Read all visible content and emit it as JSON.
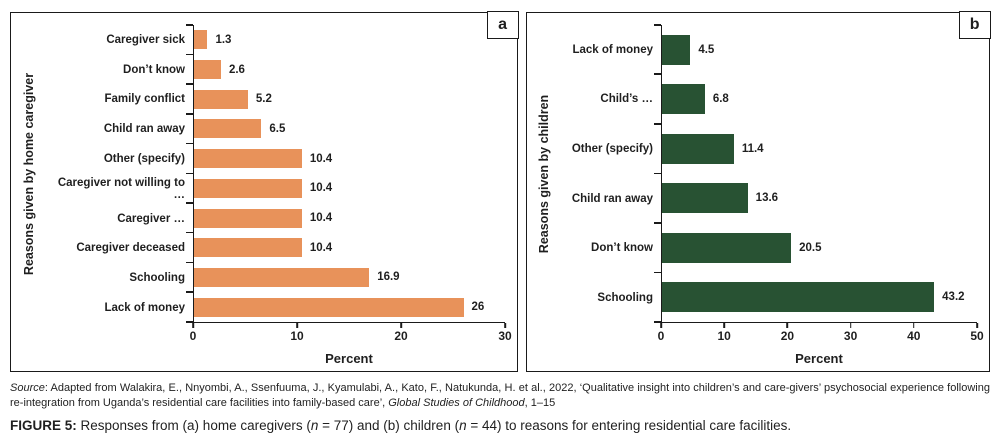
{
  "chart_data": [
    {
      "type": "bar",
      "orientation": "horizontal",
      "panel_label": "a",
      "ylabel": "Reasons given by home caregiver",
      "xlabel": "Percent",
      "categories": [
        "Caregiver sick",
        "Don’t know",
        "Family conflict",
        "Child ran away",
        "Other (specify)",
        "Caregiver not willing to …",
        "Caregiver …",
        "Caregiver deceased",
        "Schooling",
        "Lack of money"
      ],
      "values": [
        1.3,
        2.6,
        5.2,
        6.5,
        10.4,
        10.4,
        10.4,
        10.4,
        16.9,
        26
      ],
      "value_labels": [
        "1.3",
        "2.6",
        "5.2",
        "6.5",
        "10.4",
        "10.4",
        "10.4",
        "10.4",
        "16.9",
        "26"
      ],
      "xlim": [
        0,
        30
      ],
      "xticks": [
        0,
        10,
        20,
        30
      ],
      "bar_color": "#E8925A",
      "grid": false,
      "legend": false
    },
    {
      "type": "bar",
      "orientation": "horizontal",
      "panel_label": "b",
      "ylabel": "Reasons given by children",
      "xlabel": "Percent",
      "categories": [
        "Lack of money",
        "Child’s …",
        "Other (specify)",
        "Child ran away",
        "Don’t know",
        "Schooling"
      ],
      "values": [
        4.5,
        6.8,
        11.4,
        13.6,
        20.5,
        43.2
      ],
      "value_labels": [
        "4.5",
        "6.8",
        "11.4",
        "13.6",
        "20.5",
        "43.2"
      ],
      "xlim": [
        0,
        50
      ],
      "xticks": [
        0,
        10,
        20,
        30,
        40,
        50
      ],
      "bar_color": "#285233",
      "grid": false,
      "legend": false
    }
  ],
  "source_note": {
    "segments": [
      {
        "text": "Source",
        "italic": true
      },
      {
        "text": ": Adapted from Walakira, E., Nnyombi, A., Ssenfuuma, J., Kyamulabi, A., Kato, F., Natukunda, H. et al., 2022, ‘Qualitative insight into children’s and care-givers’ psychosocial experience following re-integration from Uganda’s residential care facilities into family-based care’, "
      },
      {
        "text": "Global Studies of Childhood",
        "italic": true
      },
      {
        "text": ", 1–15"
      }
    ]
  },
  "caption": {
    "segments": [
      {
        "text": "FIGURE 5:",
        "bold": true
      },
      {
        "text": " Responses from (a) home caregivers ("
      },
      {
        "text": "n",
        "italic": true
      },
      {
        "text": " = 77) and (b) children ("
      },
      {
        "text": "n",
        "italic": true
      },
      {
        "text": " = 44) to reasons for entering residential care facilities."
      }
    ]
  }
}
